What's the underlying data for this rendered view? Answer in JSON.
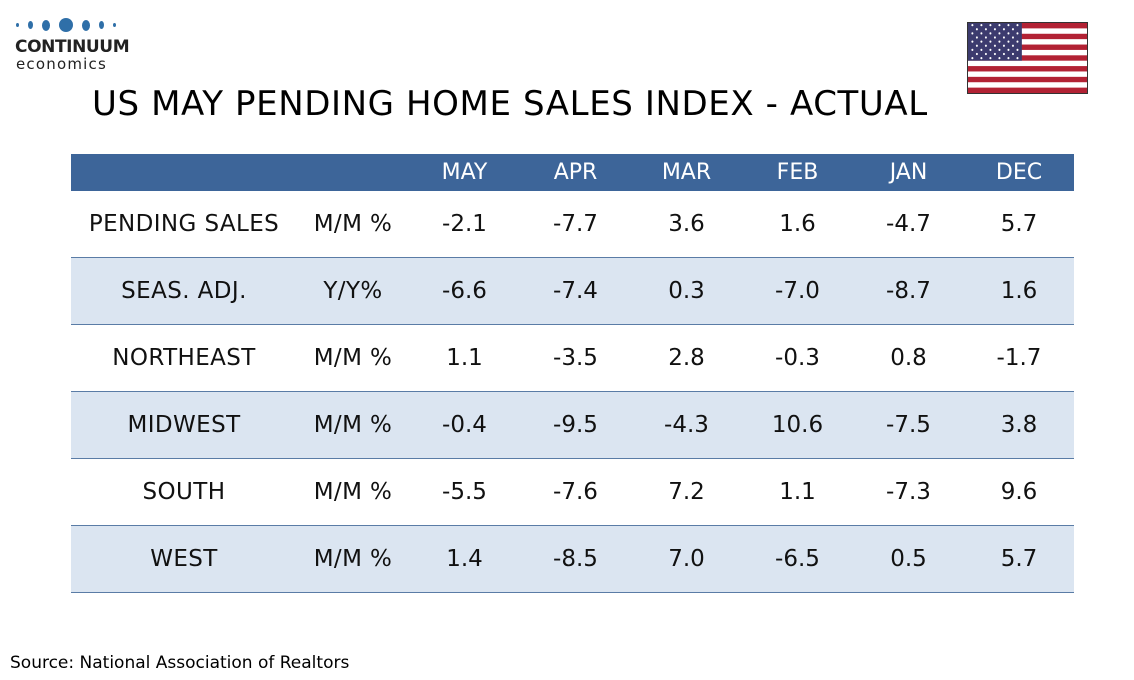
{
  "logo": {
    "name_line1": "CONTINUUM",
    "name_line2": "economics"
  },
  "flag": {
    "icon": "us-flag-icon",
    "colors": {
      "red": "#b22234",
      "white": "#ffffff",
      "blue": "#3c3b6e"
    }
  },
  "title": "US MAY PENDING HOME SALES INDEX - ACTUAL",
  "colors": {
    "header_bg": "#3d6599",
    "header_text": "#ffffff",
    "shaded_row": "#dbe5f1",
    "row_border": "#5a7ca6"
  },
  "table": {
    "columns": [
      "",
      "",
      "MAY",
      "APR",
      "MAR",
      "FEB",
      "JAN",
      "DEC"
    ],
    "rows": [
      {
        "label": "PENDING SALES",
        "unit": "M/M %",
        "values": [
          "-2.1",
          "-7.7",
          "3.6",
          "1.6",
          "-4.7",
          "5.7"
        ]
      },
      {
        "label": "SEAS. ADJ.",
        "unit": "Y/Y%",
        "values": [
          "-6.6",
          "-7.4",
          "0.3",
          "-7.0",
          "-8.7",
          "1.6"
        ]
      },
      {
        "label": "NORTHEAST",
        "unit": "M/M %",
        "values": [
          "1.1",
          "-3.5",
          "2.8",
          "-0.3",
          "0.8",
          "-1.7"
        ]
      },
      {
        "label": "MIDWEST",
        "unit": "M/M %",
        "values": [
          "-0.4",
          "-9.5",
          "-4.3",
          "10.6",
          "-7.5",
          "3.8"
        ]
      },
      {
        "label": "SOUTH",
        "unit": "M/M %",
        "values": [
          "-5.5",
          "-7.6",
          "7.2",
          "1.1",
          "-7.3",
          "9.6"
        ]
      },
      {
        "label": "WEST",
        "unit": "M/M %",
        "values": [
          "1.4",
          "-8.5",
          "7.0",
          "-6.5",
          "0.5",
          "5.7"
        ]
      }
    ]
  },
  "source": "Source: National Association of Realtors"
}
